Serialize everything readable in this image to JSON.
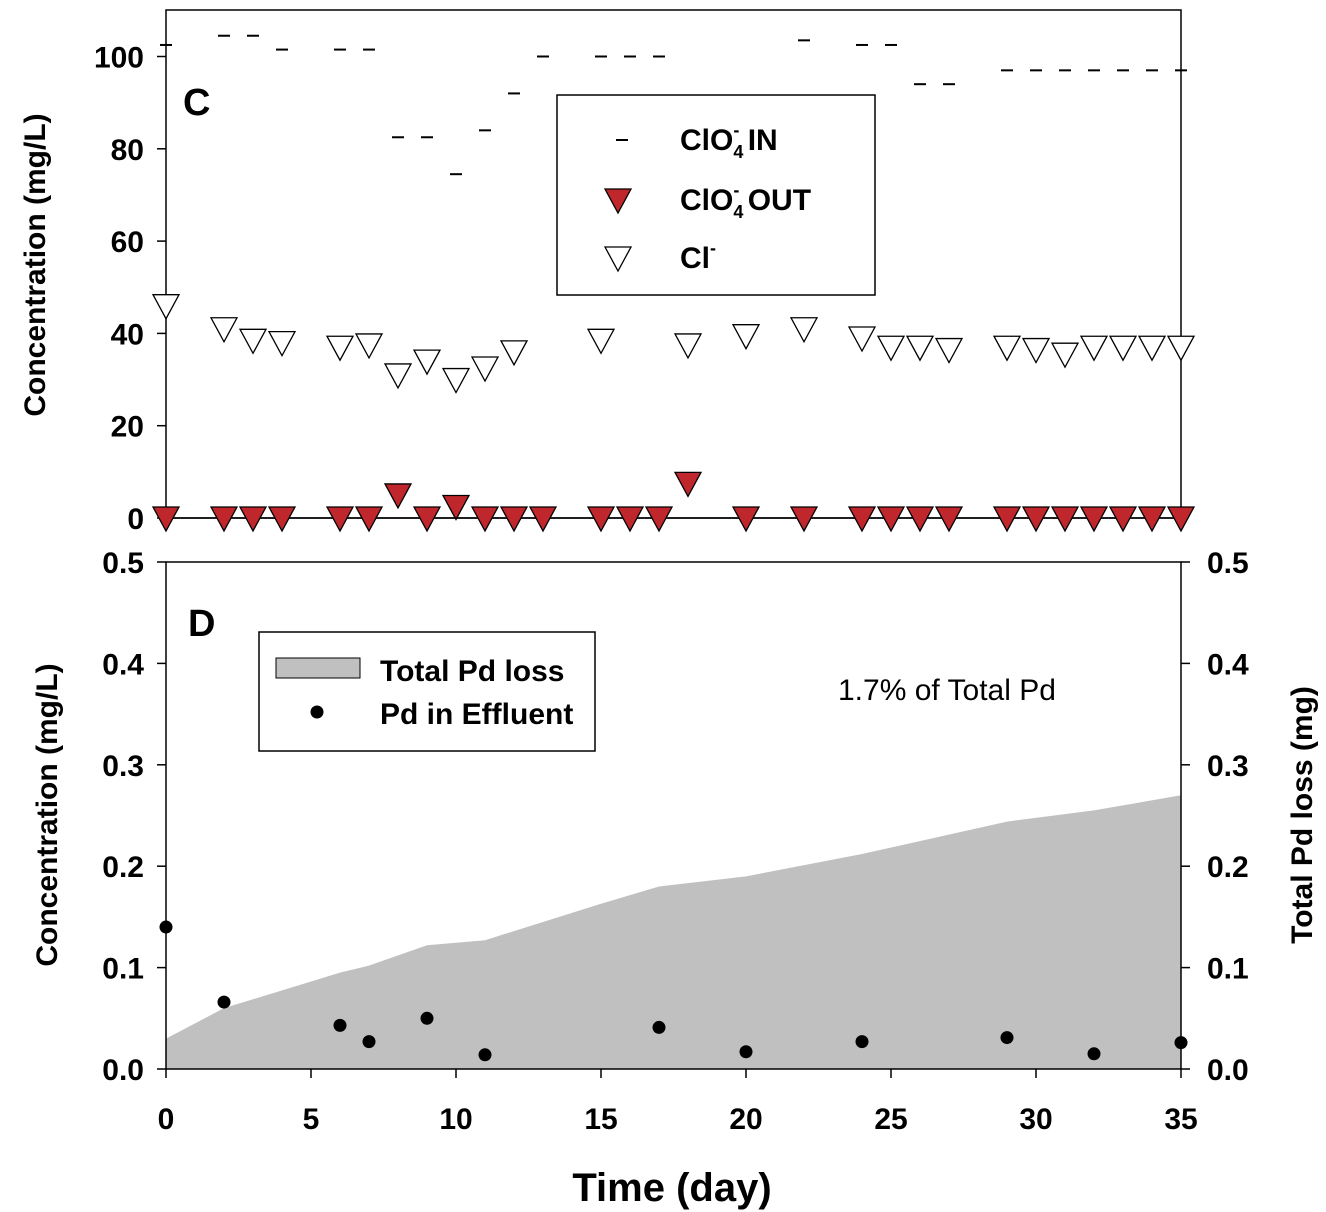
{
  "figure": {
    "x_axis_title": "Time (day)",
    "x_ticks": [
      "0",
      "5",
      "10",
      "15",
      "20",
      "25",
      "30",
      "35"
    ]
  },
  "chart_data": [
    {
      "type": "scatter",
      "panel_label": "C",
      "ylabel": "Concentration (mg/L)",
      "xlim": [
        0,
        35
      ],
      "ylim": [
        0,
        110
      ],
      "y_ticks": [
        "0",
        "20",
        "40",
        "60",
        "80",
        "100"
      ],
      "grid": false,
      "legend_placement": "top-center",
      "series": [
        {
          "key": "clo4_in",
          "legend_main": "ClO",
          "legend_sub": "4",
          "legend_sup": "-",
          "legend_tail": " IN",
          "marker": "dash",
          "color": "#000000",
          "x": [
            0,
            2,
            3,
            4,
            6,
            7,
            8,
            9,
            10,
            11,
            12,
            13,
            15,
            16,
            17,
            22,
            24,
            25,
            26,
            27,
            29,
            30,
            31,
            32,
            33,
            34,
            35
          ],
          "y": [
            102.5,
            104.5,
            104.5,
            101.5,
            101.5,
            101.5,
            82.5,
            82.5,
            74.5,
            84,
            92,
            100,
            100,
            100,
            100,
            103.5,
            102.5,
            102.5,
            94,
            94,
            97,
            97,
            97,
            97,
            97,
            97,
            97
          ]
        },
        {
          "key": "clo4_out",
          "legend_main": "ClO",
          "legend_sub": "4",
          "legend_sup": "-",
          "legend_tail": " OUT",
          "marker": "triangle-down-filled",
          "color": "#c0272d",
          "x": [
            0,
            2,
            3,
            4,
            6,
            7,
            8,
            9,
            10,
            11,
            12,
            13,
            15,
            16,
            17,
            18,
            20,
            22,
            24,
            25,
            26,
            27,
            29,
            30,
            31,
            32,
            33,
            34,
            35
          ],
          "y": [
            0,
            0,
            0,
            0,
            0,
            0,
            5,
            0,
            2.5,
            0,
            0,
            0,
            0,
            0,
            0,
            7.5,
            0,
            0,
            0,
            0,
            0,
            0,
            0,
            0,
            0,
            0,
            0,
            0,
            0
          ]
        },
        {
          "key": "cl",
          "legend_main": "Cl",
          "legend_sub": "",
          "legend_sup": "-",
          "legend_tail": "",
          "marker": "triangle-down-open",
          "color": "#000000",
          "x": [
            0,
            2,
            3,
            4,
            6,
            7,
            8,
            9,
            10,
            11,
            12,
            15,
            18,
            20,
            22,
            24,
            25,
            26,
            27,
            29,
            30,
            31,
            32,
            33,
            34,
            35
          ],
          "y": [
            46,
            41,
            38.5,
            38,
            37,
            37.5,
            31,
            34,
            30,
            32.5,
            36,
            38.5,
            37.5,
            39.5,
            41,
            39,
            37,
            37,
            36.5,
            37,
            36.5,
            35.5,
            37,
            37,
            37,
            37
          ]
        }
      ]
    },
    {
      "type": "area",
      "panel_label": "D",
      "ylabel": "Concentration (mg/L)",
      "y2label": "Total Pd loss (mg)",
      "xlim": [
        0,
        35
      ],
      "ylim": [
        0,
        0.5
      ],
      "y2lim": [
        0,
        0.5
      ],
      "y_ticks": [
        "0.0",
        "0.1",
        "0.2",
        "0.3",
        "0.4",
        "0.5"
      ],
      "y2_ticks": [
        "0.0",
        "0.1",
        "0.2",
        "0.3",
        "0.4",
        "0.5"
      ],
      "grid": false,
      "legend_placement": "top-left",
      "annotation": "1.7% of Total Pd",
      "series": [
        {
          "key": "total_pd_loss",
          "name": "Total Pd loss",
          "kind": "area",
          "axis": "right",
          "color": "#c0c0c0",
          "x": [
            0,
            2,
            6,
            7,
            9,
            11,
            15,
            17,
            20,
            24,
            29,
            32,
            35
          ],
          "y": [
            0.03,
            0.06,
            0.095,
            0.102,
            0.122,
            0.127,
            0.163,
            0.18,
            0.19,
            0.212,
            0.244,
            0.255,
            0.27
          ]
        },
        {
          "key": "pd_effluent",
          "name": "Pd in Effluent",
          "kind": "scatter",
          "axis": "left",
          "color": "#000000",
          "x": [
            0,
            2,
            6,
            7,
            9,
            11,
            17,
            20,
            24,
            29,
            32,
            35
          ],
          "y": [
            0.14,
            0.066,
            0.043,
            0.027,
            0.05,
            0.014,
            0.041,
            0.017,
            0.027,
            0.031,
            0.015,
            0.026
          ]
        }
      ]
    }
  ]
}
